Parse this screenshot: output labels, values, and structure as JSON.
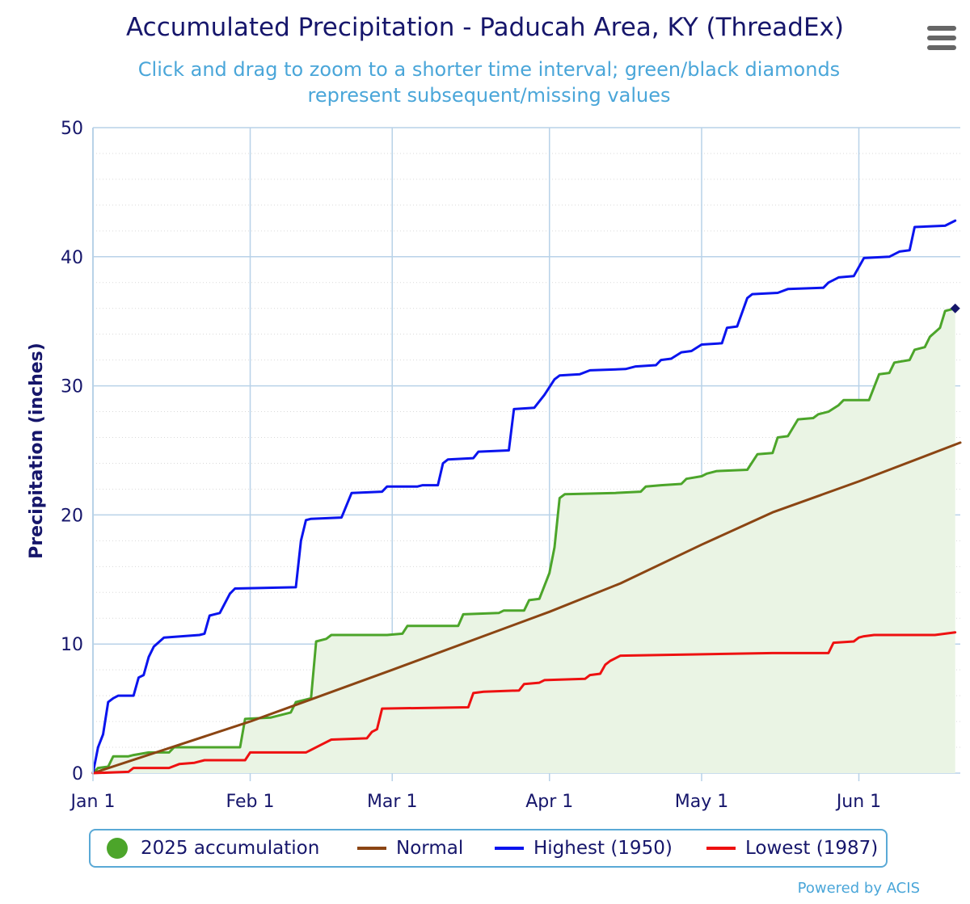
{
  "title": "Accumulated Precipitation - Paducah Area, KY (ThreadEx)",
  "subtitle": "Click and drag to zoom to a shorter time interval; green/black diamonds represent subsequent/missing values",
  "credit": "Powered by ACIS",
  "colors": {
    "title": "#16166b",
    "subtitle": "#4aa6d9",
    "accumulation": "#4ca52a",
    "accumulation_fill": "#eaf4e4",
    "normal": "#8b4513",
    "highest": "#0a14ee",
    "lowest": "#ee1111",
    "grid": "#b8d2e8",
    "axis_text": "#16166b",
    "marker": "#16166b"
  },
  "icons": {
    "menu": "hamburger-menu-icon",
    "accumulation_legend": "green-circle-icon"
  },
  "chart_data": {
    "type": "line",
    "title": "Accumulated Precipitation - Paducah Area, KY (ThreadEx)",
    "ylabel": "Precipitation (inches)",
    "xlabel": "",
    "ylim": [
      0,
      50
    ],
    "yticks": [
      0,
      10,
      20,
      30,
      40,
      50
    ],
    "xlim": [
      "2025-01-01",
      "2025-06-21"
    ],
    "xticks": [
      {
        "date": "2025-01-01",
        "label": "Jan 1"
      },
      {
        "date": "2025-02-01",
        "label": "Feb 1"
      },
      {
        "date": "2025-03-01",
        "label": "Mar 1"
      },
      {
        "date": "2025-04-01",
        "label": "Apr 1"
      },
      {
        "date": "2025-05-01",
        "label": "May 1"
      },
      {
        "date": "2025-06-01",
        "label": "Jun 1"
      }
    ],
    "grid": true,
    "legend_position": "bottom",
    "series": [
      {
        "name": "2025 accumulation",
        "key": "accumulation",
        "style": "area",
        "points": [
          [
            "2025-01-01",
            0
          ],
          [
            "2025-01-02",
            0.4
          ],
          [
            "2025-01-04",
            0.5
          ],
          [
            "2025-01-05",
            1.3
          ],
          [
            "2025-01-08",
            1.3
          ],
          [
            "2025-01-09",
            1.4
          ],
          [
            "2025-01-12",
            1.6
          ],
          [
            "2025-01-16",
            1.6
          ],
          [
            "2025-01-17",
            2.0
          ],
          [
            "2025-01-30",
            2.0
          ],
          [
            "2025-01-31",
            4.2
          ],
          [
            "2025-02-05",
            4.3
          ],
          [
            "2025-02-09",
            4.7
          ],
          [
            "2025-02-10",
            5.5
          ],
          [
            "2025-02-12",
            5.7
          ],
          [
            "2025-02-13",
            5.8
          ],
          [
            "2025-02-14",
            10.2
          ],
          [
            "2025-02-16",
            10.4
          ],
          [
            "2025-02-17",
            10.7
          ],
          [
            "2025-02-28",
            10.7
          ],
          [
            "2025-03-03",
            10.8
          ],
          [
            "2025-03-04",
            11.4
          ],
          [
            "2025-03-14",
            11.4
          ],
          [
            "2025-03-15",
            12.3
          ],
          [
            "2025-03-22",
            12.4
          ],
          [
            "2025-03-23",
            12.6
          ],
          [
            "2025-03-27",
            12.6
          ],
          [
            "2025-03-28",
            13.4
          ],
          [
            "2025-03-30",
            13.5
          ],
          [
            "2025-04-01",
            15.5
          ],
          [
            "2025-04-02",
            17.5
          ],
          [
            "2025-04-03",
            21.3
          ],
          [
            "2025-04-04",
            21.6
          ],
          [
            "2025-04-14",
            21.7
          ],
          [
            "2025-04-19",
            21.8
          ],
          [
            "2025-04-20",
            22.2
          ],
          [
            "2025-04-23",
            22.3
          ],
          [
            "2025-04-27",
            22.4
          ],
          [
            "2025-04-28",
            22.8
          ],
          [
            "2025-05-01",
            23.0
          ],
          [
            "2025-05-02",
            23.2
          ],
          [
            "2025-05-04",
            23.4
          ],
          [
            "2025-05-10",
            23.5
          ],
          [
            "2025-05-12",
            24.7
          ],
          [
            "2025-05-15",
            24.8
          ],
          [
            "2025-05-16",
            26.0
          ],
          [
            "2025-05-18",
            26.1
          ],
          [
            "2025-05-20",
            27.4
          ],
          [
            "2025-05-23",
            27.5
          ],
          [
            "2025-05-24",
            27.8
          ],
          [
            "2025-05-26",
            28.0
          ],
          [
            "2025-05-28",
            28.5
          ],
          [
            "2025-05-29",
            28.9
          ],
          [
            "2025-06-03",
            28.9
          ],
          [
            "2025-06-05",
            30.9
          ],
          [
            "2025-06-07",
            31.0
          ],
          [
            "2025-06-08",
            31.8
          ],
          [
            "2025-06-11",
            32.0
          ],
          [
            "2025-06-12",
            32.8
          ],
          [
            "2025-06-14",
            33.0
          ],
          [
            "2025-06-15",
            33.8
          ],
          [
            "2025-06-17",
            34.5
          ],
          [
            "2025-06-18",
            35.8
          ],
          [
            "2025-06-20",
            36.0
          ]
        ],
        "end_marker": {
          "date": "2025-06-20",
          "value": 36.0
        }
      },
      {
        "name": "Normal",
        "key": "normal",
        "style": "line",
        "points": [
          [
            "2025-01-01",
            0
          ],
          [
            "2025-02-01",
            4.0
          ],
          [
            "2025-03-01",
            8.0
          ],
          [
            "2025-04-01",
            12.5
          ],
          [
            "2025-04-15",
            14.7
          ],
          [
            "2025-05-01",
            17.7
          ],
          [
            "2025-05-15",
            20.2
          ],
          [
            "2025-06-01",
            22.6
          ],
          [
            "2025-06-21",
            25.6
          ]
        ]
      },
      {
        "name": "Highest (1950)",
        "key": "highest",
        "style": "line",
        "points": [
          [
            "2025-01-01",
            0
          ],
          [
            "2025-01-02",
            2.0
          ],
          [
            "2025-01-03",
            3.0
          ],
          [
            "2025-01-04",
            5.5
          ],
          [
            "2025-01-05",
            5.8
          ],
          [
            "2025-01-06",
            6.0
          ],
          [
            "2025-01-09",
            6.0
          ],
          [
            "2025-01-10",
            7.4
          ],
          [
            "2025-01-11",
            7.6
          ],
          [
            "2025-01-12",
            9.0
          ],
          [
            "2025-01-13",
            9.8
          ],
          [
            "2025-01-15",
            10.5
          ],
          [
            "2025-01-22",
            10.7
          ],
          [
            "2025-01-23",
            10.8
          ],
          [
            "2025-01-24",
            12.2
          ],
          [
            "2025-01-26",
            12.4
          ],
          [
            "2025-01-28",
            13.9
          ],
          [
            "2025-01-29",
            14.3
          ],
          [
            "2025-02-10",
            14.4
          ],
          [
            "2025-02-11",
            18.0
          ],
          [
            "2025-02-12",
            19.6
          ],
          [
            "2025-02-13",
            19.7
          ],
          [
            "2025-02-19",
            19.8
          ],
          [
            "2025-02-21",
            21.7
          ],
          [
            "2025-02-27",
            21.8
          ],
          [
            "2025-02-28",
            22.2
          ],
          [
            "2025-03-06",
            22.2
          ],
          [
            "2025-03-07",
            22.3
          ],
          [
            "2025-03-10",
            22.3
          ],
          [
            "2025-03-11",
            24.0
          ],
          [
            "2025-03-12",
            24.3
          ],
          [
            "2025-03-17",
            24.4
          ],
          [
            "2025-03-18",
            24.9
          ],
          [
            "2025-03-24",
            25.0
          ],
          [
            "2025-03-25",
            28.2
          ],
          [
            "2025-03-29",
            28.3
          ],
          [
            "2025-03-31",
            29.3
          ],
          [
            "2025-04-02",
            30.5
          ],
          [
            "2025-04-03",
            30.8
          ],
          [
            "2025-04-07",
            30.9
          ],
          [
            "2025-04-09",
            31.2
          ],
          [
            "2025-04-16",
            31.3
          ],
          [
            "2025-04-18",
            31.5
          ],
          [
            "2025-04-22",
            31.6
          ],
          [
            "2025-04-23",
            32.0
          ],
          [
            "2025-04-25",
            32.1
          ],
          [
            "2025-04-27",
            32.6
          ],
          [
            "2025-04-29",
            32.7
          ],
          [
            "2025-05-01",
            33.2
          ],
          [
            "2025-05-05",
            33.3
          ],
          [
            "2025-05-06",
            34.5
          ],
          [
            "2025-05-08",
            34.6
          ],
          [
            "2025-05-10",
            36.8
          ],
          [
            "2025-05-11",
            37.1
          ],
          [
            "2025-05-16",
            37.2
          ],
          [
            "2025-05-18",
            37.5
          ],
          [
            "2025-05-25",
            37.6
          ],
          [
            "2025-05-26",
            38.0
          ],
          [
            "2025-05-28",
            38.4
          ],
          [
            "2025-05-31",
            38.5
          ],
          [
            "2025-06-02",
            39.9
          ],
          [
            "2025-06-07",
            40.0
          ],
          [
            "2025-06-09",
            40.4
          ],
          [
            "2025-06-11",
            40.5
          ],
          [
            "2025-06-12",
            42.3
          ],
          [
            "2025-06-18",
            42.4
          ],
          [
            "2025-06-20",
            42.8
          ]
        ]
      },
      {
        "name": "Lowest (1987)",
        "key": "lowest",
        "style": "line",
        "points": [
          [
            "2025-01-01",
            0
          ],
          [
            "2025-01-08",
            0.1
          ],
          [
            "2025-01-09",
            0.4
          ],
          [
            "2025-01-16",
            0.4
          ],
          [
            "2025-01-18",
            0.7
          ],
          [
            "2025-01-21",
            0.8
          ],
          [
            "2025-01-23",
            1.0
          ],
          [
            "2025-01-31",
            1.0
          ],
          [
            "2025-02-01",
            1.6
          ],
          [
            "2025-02-12",
            1.6
          ],
          [
            "2025-02-15",
            2.2
          ],
          [
            "2025-02-17",
            2.6
          ],
          [
            "2025-02-24",
            2.7
          ],
          [
            "2025-02-25",
            3.2
          ],
          [
            "2025-02-26",
            3.4
          ],
          [
            "2025-02-27",
            5.0
          ],
          [
            "2025-03-16",
            5.1
          ],
          [
            "2025-03-17",
            6.2
          ],
          [
            "2025-03-19",
            6.3
          ],
          [
            "2025-03-26",
            6.4
          ],
          [
            "2025-03-27",
            6.9
          ],
          [
            "2025-03-30",
            7.0
          ],
          [
            "2025-03-31",
            7.2
          ],
          [
            "2025-04-08",
            7.3
          ],
          [
            "2025-04-09",
            7.6
          ],
          [
            "2025-04-11",
            7.7
          ],
          [
            "2025-04-12",
            8.4
          ],
          [
            "2025-04-13",
            8.7
          ],
          [
            "2025-04-15",
            9.1
          ],
          [
            "2025-04-30",
            9.2
          ],
          [
            "2025-05-15",
            9.3
          ],
          [
            "2025-05-26",
            9.3
          ],
          [
            "2025-05-27",
            10.1
          ],
          [
            "2025-05-31",
            10.2
          ],
          [
            "2025-06-01",
            10.5
          ],
          [
            "2025-06-02",
            10.6
          ],
          [
            "2025-06-04",
            10.7
          ],
          [
            "2025-06-16",
            10.7
          ],
          [
            "2025-06-18",
            10.8
          ],
          [
            "2025-06-20",
            10.9
          ]
        ]
      }
    ]
  }
}
